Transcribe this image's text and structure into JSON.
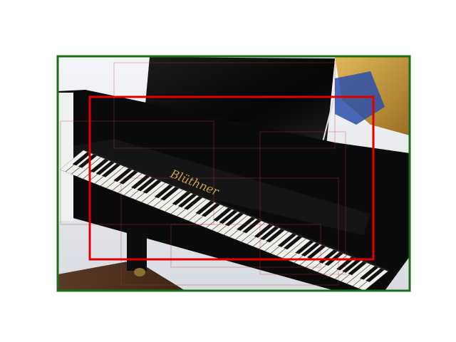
{
  "image": {
    "subject": "grand-piano",
    "brand_text": "Blüthner",
    "colors": {
      "frame_outline": "#1a6e1a",
      "detection_box": "#e00000",
      "faint_boxes": "#c83232",
      "piano_body": "#0a0a0a",
      "white_keys": "#f2f0ea",
      "black_keys": "#111111",
      "soundboard_gold": "#c89a3a",
      "background_wall": "#e8e9ee"
    }
  },
  "annotations": {
    "primary_box_label": "",
    "frame_label": ""
  }
}
